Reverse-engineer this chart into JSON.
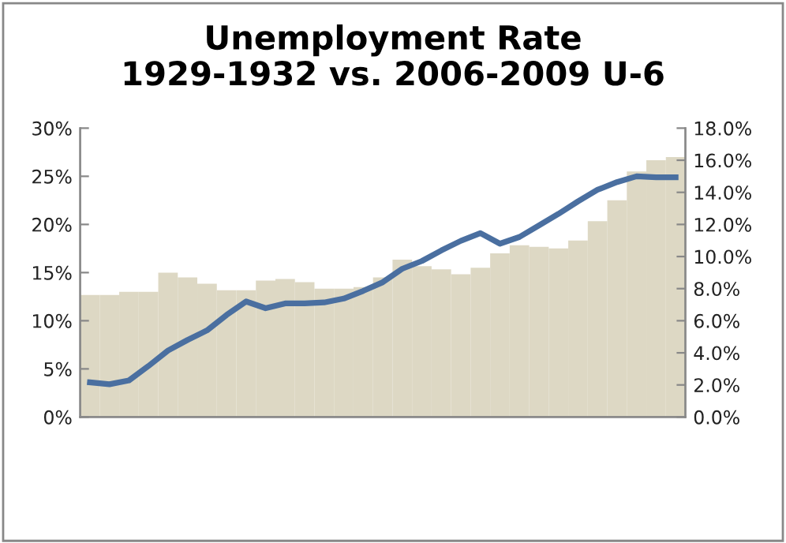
{
  "chart_data": {
    "type": "line",
    "title": "Unemployment Rate\n1929-1932 vs. 2006-2009 U-6",
    "categories": [
      null,
      null,
      null,
      null,
      null,
      null,
      null,
      null,
      null,
      null,
      null,
      null,
      null,
      null,
      null,
      null,
      null,
      null,
      null,
      null,
      null,
      null,
      null,
      null,
      null,
      null,
      null,
      null,
      null,
      null,
      null
    ],
    "series": [
      {
        "type": "bar",
        "axis": "y2",
        "color": "#ddd8c4",
        "values": [
          7.6,
          7.6,
          7.8,
          7.8,
          9.0,
          8.7,
          8.3,
          7.9,
          7.9,
          8.5,
          8.6,
          8.4,
          8.0,
          8.0,
          8.1,
          8.7,
          9.8,
          9.4,
          9.2,
          8.9,
          9.3,
          10.2,
          10.7,
          10.6,
          10.5,
          11.0,
          12.2,
          13.5,
          15.3,
          16.0,
          16.2
        ]
      },
      {
        "color": "#4a6fa0",
        "values": [
          3.6,
          3.4,
          3.8,
          5.3,
          6.9,
          8.0,
          9.0,
          10.6,
          12.0,
          11.3,
          11.8,
          11.8,
          11.9,
          12.3,
          13.1,
          14.0,
          15.4,
          16.2,
          17.3,
          18.3,
          19.1,
          18.0,
          18.7,
          19.9,
          21.1,
          22.4,
          23.6,
          24.4,
          25.0,
          24.9,
          24.9
        ]
      }
    ],
    "ylim": [
      0,
      30
    ],
    "yticks": [
      {
        "value": 0,
        "label": "0%"
      },
      {
        "value": 5,
        "label": "5%"
      },
      {
        "value": 10,
        "label": "10%"
      },
      {
        "value": 15,
        "label": "15%"
      },
      {
        "value": 20,
        "label": "20%"
      },
      {
        "value": 25,
        "label": "25%"
      },
      {
        "value": 30,
        "label": "30%"
      }
    ],
    "y2lim": [
      0,
      18
    ],
    "y2ticks": [
      {
        "value": 0,
        "label": "0.0%"
      },
      {
        "value": 2,
        "label": "2.0%"
      },
      {
        "value": 4,
        "label": "4.0%"
      },
      {
        "value": 6,
        "label": "6.0%"
      },
      {
        "value": 8,
        "label": "8.0%"
      },
      {
        "value": 10,
        "label": "10.0%"
      },
      {
        "value": 12,
        "label": "12.0%"
      },
      {
        "value": 14,
        "label": "14.0%"
      },
      {
        "value": 16,
        "label": "16.0%"
      },
      {
        "value": 18,
        "label": "18.0%"
      }
    ],
    "grid": false,
    "legend": false,
    "marker": "none",
    "line_style": "solid"
  }
}
